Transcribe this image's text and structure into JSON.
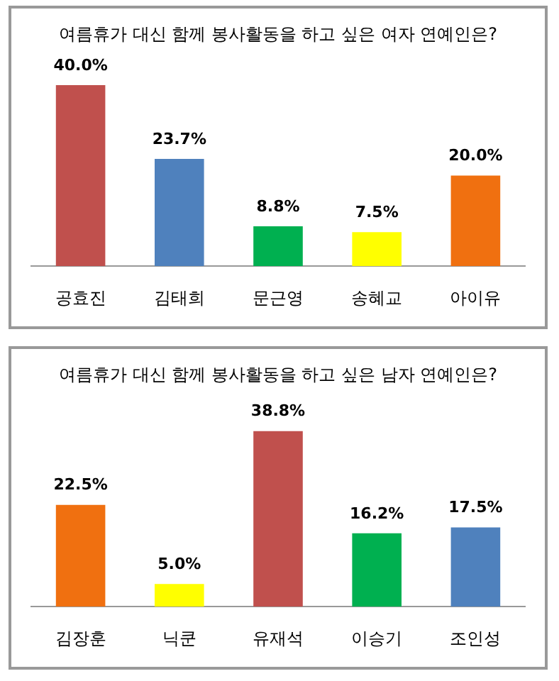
{
  "chart_data": [
    {
      "type": "bar",
      "title": "여름휴가 대신 함께 봉사활동을 하고 싶은 여자 연예인은?",
      "categories": [
        "공효진",
        "김태희",
        "문근영",
        "송혜교",
        "아이유"
      ],
      "values": [
        40.0,
        23.7,
        8.8,
        7.5,
        20.0
      ],
      "colors": [
        "#c0504d",
        "#4f81bd",
        "#00b050",
        "#ffff00",
        "#f07010"
      ],
      "value_labels": [
        "40.0%",
        "23.7%",
        "8.8%",
        "7.5%",
        "20.0%"
      ],
      "grid": false,
      "legend": false
    },
    {
      "type": "bar",
      "title": "여름휴가 대신 함께 봉사활동을 하고 싶은 남자 연예인은?",
      "categories": [
        "김장훈",
        "닉쿤",
        "유재석",
        "이승기",
        "조인성"
      ],
      "values": [
        22.5,
        5.0,
        38.8,
        16.2,
        17.5
      ],
      "colors": [
        "#f07010",
        "#ffff00",
        "#c0504d",
        "#00b050",
        "#4f81bd"
      ],
      "value_labels": [
        "22.5%",
        "5.0%",
        "38.8%",
        "16.2%",
        "17.5%"
      ],
      "grid": false,
      "legend": false
    }
  ]
}
